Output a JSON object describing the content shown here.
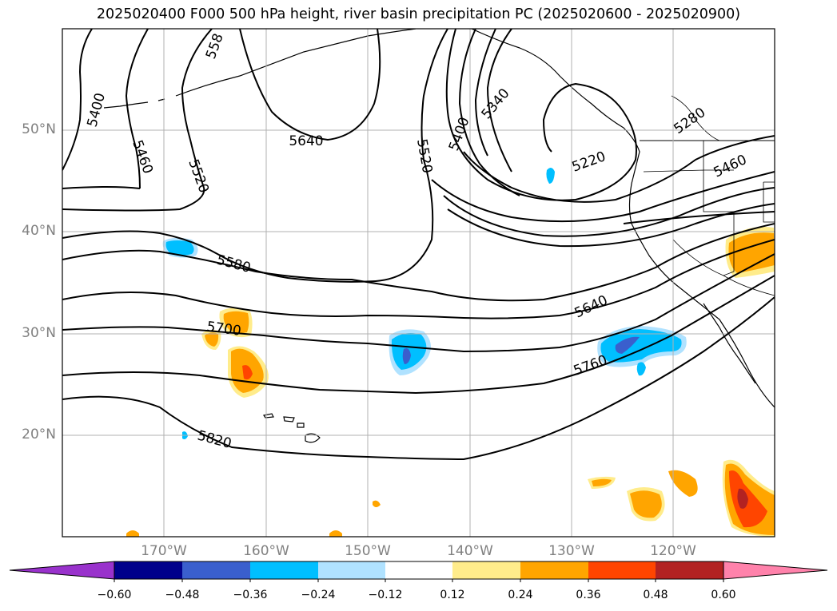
{
  "title": "2025020400 F000 500 hPa height, river basin precipitation PC (2025020600 - 2025020900)",
  "lat_labels": [
    "50°N",
    "40°N",
    "30°N",
    "20°N"
  ],
  "lon_labels": [
    "170°W",
    "160°W",
    "150°W",
    "140°W",
    "130°W",
    "120°W"
  ],
  "contour_labels": [
    "5400",
    "558",
    "5460",
    "5520",
    "5640",
    "5520",
    "5400",
    "5340",
    "5220",
    "5280",
    "5460",
    "5580",
    "5640",
    "5700",
    "5760",
    "5820"
  ],
  "colorbar": {
    "ticks": [
      "−0.60",
      "−0.48",
      "−0.36",
      "−0.24",
      "−0.12",
      "0.12",
      "0.24",
      "0.36",
      "0.48",
      "0.60"
    ],
    "colors": [
      "#9932cc",
      "#00008b",
      "#3a5fcd",
      "#00bfff",
      "#b0e2ff",
      "#ffffff",
      "#ffec8b",
      "#ffa500",
      "#ff4500",
      "#b22222",
      "#ff82ab"
    ]
  }
}
